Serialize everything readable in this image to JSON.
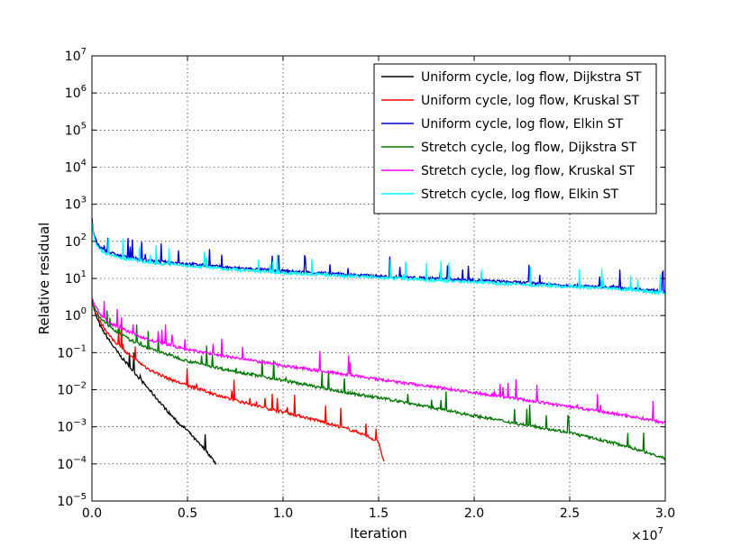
{
  "chart_data": {
    "type": "line",
    "title": "",
    "xlabel": "Iteration",
    "ylabel": "Relative residual",
    "x_scale_label": "×10",
    "x_scale_exponent": "7",
    "xlim": [
      0,
      30000000
    ],
    "ylim": [
      1e-05,
      10000000.0
    ],
    "yscale": "log",
    "grid": true,
    "legend_position": "top-right",
    "x_ticks": [
      {
        "value": 0,
        "label": "0.0"
      },
      {
        "value": 5000000,
        "label": "0.5"
      },
      {
        "value": 10000000,
        "label": "1.0"
      },
      {
        "value": 15000000,
        "label": "1.5"
      },
      {
        "value": 20000000,
        "label": "2.0"
      },
      {
        "value": 25000000,
        "label": "2.5"
      },
      {
        "value": 30000000,
        "label": "3.0"
      }
    ],
    "y_ticks": [
      {
        "value": 1e-05,
        "base": "10",
        "exp": "−5"
      },
      {
        "value": 0.0001,
        "base": "10",
        "exp": "−4"
      },
      {
        "value": 0.001,
        "base": "10",
        "exp": "−3"
      },
      {
        "value": 0.01,
        "base": "10",
        "exp": "−2"
      },
      {
        "value": 0.1,
        "base": "10",
        "exp": "−1"
      },
      {
        "value": 1.0,
        "base": "10",
        "exp": "0"
      },
      {
        "value": 10.0,
        "base": "10",
        "exp": "1"
      },
      {
        "value": 100.0,
        "base": "10",
        "exp": "2"
      },
      {
        "value": 1000.0,
        "base": "10",
        "exp": "3"
      },
      {
        "value": 10000.0,
        "base": "10",
        "exp": "4"
      },
      {
        "value": 100000.0,
        "base": "10",
        "exp": "5"
      },
      {
        "value": 1000000.0,
        "base": "10",
        "exp": "6"
      },
      {
        "value": 10000000.0,
        "base": "10",
        "exp": "7"
      }
    ],
    "series": [
      {
        "name": "Uniform cycle, log flow, Dijkstra ST",
        "color": "#000000",
        "x": [
          0,
          200000,
          500000,
          1000000,
          1500000,
          2000000,
          2500000,
          3000000,
          3500000,
          4000000,
          4500000,
          5000000,
          5500000,
          6000000,
          6500000
        ],
        "y": [
          2.5,
          1.0,
          0.45,
          0.18,
          0.08,
          0.04,
          0.02,
          0.01,
          0.005,
          0.0025,
          0.0013,
          0.0008,
          0.0004,
          0.00022,
          0.0001
        ]
      },
      {
        "name": "Uniform cycle, log flow, Kruskal ST",
        "color": "#ff0000",
        "x": [
          0,
          200000,
          500000,
          1000000,
          2000000,
          3000000,
          4000000,
          5000000,
          6000000,
          7000000,
          8000000,
          9000000,
          10000000,
          11000000,
          12000000,
          13000000,
          14000000,
          15000000,
          15300000
        ],
        "y": [
          2.5,
          1.2,
          0.6,
          0.25,
          0.08,
          0.035,
          0.02,
          0.013,
          0.009,
          0.006,
          0.0045,
          0.0033,
          0.0025,
          0.0019,
          0.0014,
          0.001,
          0.0007,
          0.0004,
          0.0001
        ]
      },
      {
        "name": "Uniform cycle, log flow, Elkin ST",
        "color": "#0000cc",
        "x": [
          0,
          100000,
          300000,
          700000,
          1500000,
          3000000,
          5000000,
          7000000,
          10000000,
          13000000,
          16000000,
          19000000,
          22000000,
          25000000,
          28000000,
          30000000
        ],
        "y": [
          400,
          150,
          80,
          55,
          40,
          30,
          25,
          20,
          16,
          13,
          11,
          9.5,
          8,
          6.5,
          5.5,
          4.5
        ]
      },
      {
        "name": "Stretch cycle, log flow, Dijkstra ST",
        "color": "#007700",
        "x": [
          0,
          200000,
          500000,
          1000000,
          2000000,
          3000000,
          5000000,
          7000000,
          10000000,
          13000000,
          16000000,
          19000000,
          22000000,
          25000000,
          28000000,
          30000000
        ],
        "y": [
          2.5,
          1.3,
          0.8,
          0.45,
          0.22,
          0.13,
          0.06,
          0.035,
          0.018,
          0.009,
          0.005,
          0.0025,
          0.0013,
          0.0007,
          0.0003,
          0.00014
        ]
      },
      {
        "name": "Stretch cycle, log flow, Kruskal ST",
        "color": "#ff00ff",
        "x": [
          0,
          200000,
          500000,
          1000000,
          2000000,
          3000000,
          5000000,
          7000000,
          10000000,
          13000000,
          16000000,
          19000000,
          22000000,
          25000000,
          28000000,
          30000000
        ],
        "y": [
          3.0,
          1.7,
          1.0,
          0.6,
          0.35,
          0.22,
          0.12,
          0.08,
          0.045,
          0.027,
          0.016,
          0.01,
          0.006,
          0.0035,
          0.002,
          0.0013
        ]
      },
      {
        "name": "Stretch cycle, log flow, Elkin ST",
        "color": "#00ffff",
        "x": [
          0,
          100000,
          300000,
          700000,
          1500000,
          3000000,
          5000000,
          7000000,
          10000000,
          13000000,
          16000000,
          19000000,
          22000000,
          25000000,
          28000000,
          30000000
        ],
        "y": [
          350,
          130,
          70,
          48,
          36,
          27,
          22,
          18,
          14,
          12,
          10,
          8.5,
          7,
          6,
          5,
          4
        ]
      }
    ]
  }
}
